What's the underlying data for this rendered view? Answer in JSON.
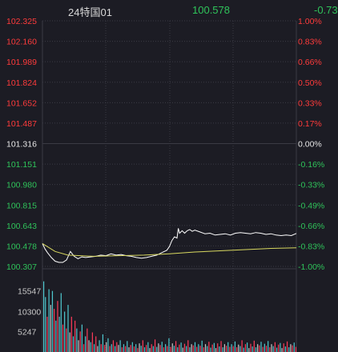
{
  "header": {
    "name": "24特国01",
    "price": "100.578",
    "change": "-0.73"
  },
  "colors": {
    "up": "#ff3b3b",
    "down": "#2fc35a",
    "neutral": "#e6e6e6",
    "grid": "#3a3a44",
    "price_line": "#ffffff",
    "avg_line": "#d8d860",
    "vol_up": "#ff3b5a",
    "vol_down": "#4fc9d0",
    "vol_flat": "#c9c9c9"
  },
  "price_axis": {
    "left_labels": [
      "102.325",
      "102.160",
      "101.989",
      "101.824",
      "101.652",
      "101.487",
      "101.316",
      "101.151",
      "100.980",
      "100.815",
      "100.643",
      "100.478",
      "100.307"
    ],
    "right_labels": [
      "1.00%",
      "0.83%",
      "0.66%",
      "0.50%",
      "0.33%",
      "0.17%",
      "0.00%",
      "-0.16%",
      "-0.33%",
      "-0.49%",
      "-0.66%",
      "-0.83%",
      "-1.00%"
    ],
    "label_tones": [
      "up",
      "up",
      "up",
      "up",
      "up",
      "up",
      "neutral",
      "down",
      "down",
      "down",
      "down",
      "down",
      "down"
    ]
  },
  "volume_axis": {
    "labels": [
      "15547",
      "10300",
      "5247"
    ]
  },
  "chart_data": {
    "type": "line",
    "ylim": [
      100.307,
      102.325
    ],
    "series": [
      {
        "points": [
          [
            0,
            100.495
          ],
          [
            0.01,
            100.45
          ],
          [
            0.02,
            100.42
          ],
          [
            0.035,
            100.38
          ],
          [
            0.05,
            100.35
          ],
          [
            0.065,
            100.34
          ],
          [
            0.08,
            100.34
          ],
          [
            0.095,
            100.36
          ],
          [
            0.11,
            100.43
          ],
          [
            0.125,
            100.39
          ],
          [
            0.14,
            100.37
          ],
          [
            0.155,
            100.385
          ],
          [
            0.17,
            100.38
          ],
          [
            0.19,
            100.385
          ],
          [
            0.21,
            100.39
          ],
          [
            0.23,
            100.4
          ],
          [
            0.25,
            100.395
          ],
          [
            0.27,
            100.41
          ],
          [
            0.29,
            100.4
          ],
          [
            0.31,
            100.405
          ],
          [
            0.33,
            100.395
          ],
          [
            0.35,
            100.39
          ],
          [
            0.37,
            100.38
          ],
          [
            0.39,
            100.375
          ],
          [
            0.41,
            100.38
          ],
          [
            0.43,
            100.39
          ],
          [
            0.45,
            100.4
          ],
          [
            0.47,
            100.42
          ],
          [
            0.49,
            100.44
          ],
          [
            0.5,
            100.47
          ],
          [
            0.51,
            100.52
          ],
          [
            0.52,
            100.55
          ],
          [
            0.53,
            100.54
          ],
          [
            0.535,
            100.62
          ],
          [
            0.54,
            100.58
          ],
          [
            0.55,
            100.6
          ],
          [
            0.56,
            100.58
          ],
          [
            0.57,
            100.6
          ],
          [
            0.58,
            100.61
          ],
          [
            0.59,
            100.595
          ],
          [
            0.6,
            100.605
          ],
          [
            0.62,
            100.59
          ],
          [
            0.64,
            100.575
          ],
          [
            0.66,
            100.58
          ],
          [
            0.68,
            100.565
          ],
          [
            0.7,
            100.57
          ],
          [
            0.72,
            100.575
          ],
          [
            0.74,
            100.565
          ],
          [
            0.76,
            100.58
          ],
          [
            0.78,
            100.585
          ],
          [
            0.8,
            100.58
          ],
          [
            0.82,
            100.575
          ],
          [
            0.84,
            100.585
          ],
          [
            0.86,
            100.58
          ],
          [
            0.88,
            100.57
          ],
          [
            0.9,
            100.575
          ],
          [
            0.92,
            100.565
          ],
          [
            0.94,
            100.56
          ],
          [
            0.96,
            100.565
          ],
          [
            0.98,
            100.56
          ],
          [
            1.0,
            100.578
          ]
        ]
      },
      {
        "points": [
          [
            0,
            100.495
          ],
          [
            0.05,
            100.43
          ],
          [
            0.1,
            100.4
          ],
          [
            0.2,
            100.39
          ],
          [
            0.3,
            100.395
          ],
          [
            0.4,
            100.4
          ],
          [
            0.5,
            100.41
          ],
          [
            0.6,
            100.425
          ],
          [
            0.7,
            100.435
          ],
          [
            0.8,
            100.445
          ],
          [
            0.9,
            100.455
          ],
          [
            1.0,
            100.46
          ]
        ]
      }
    ],
    "volume": {
      "ylim": [
        0,
        20794
      ],
      "bars": [
        [
          18000,
          "down"
        ],
        [
          14000,
          "down"
        ],
        [
          9000,
          "up"
        ],
        [
          16000,
          "down"
        ],
        [
          12000,
          "flat"
        ],
        [
          15547,
          "down"
        ],
        [
          11000,
          "up"
        ],
        [
          8000,
          "down"
        ],
        [
          13000,
          "up"
        ],
        [
          9000,
          "down"
        ],
        [
          15000,
          "down"
        ],
        [
          7000,
          "up"
        ],
        [
          10300,
          "down"
        ],
        [
          6000,
          "up"
        ],
        [
          12000,
          "down"
        ],
        [
          5000,
          "flat"
        ],
        [
          9000,
          "up"
        ],
        [
          4000,
          "down"
        ],
        [
          8000,
          "up"
        ],
        [
          6000,
          "down"
        ],
        [
          3000,
          "flat"
        ],
        [
          5247,
          "up"
        ],
        [
          7000,
          "down"
        ],
        [
          2000,
          "up"
        ],
        [
          4000,
          "down"
        ],
        [
          6000,
          "up"
        ],
        [
          3000,
          "flat"
        ],
        [
          2500,
          "down"
        ],
        [
          5000,
          "up"
        ],
        [
          2000,
          "down"
        ],
        [
          4000,
          "up"
        ],
        [
          1500,
          "flat"
        ],
        [
          3000,
          "down"
        ],
        [
          2000,
          "up"
        ],
        [
          4500,
          "down"
        ],
        [
          1800,
          "up"
        ],
        [
          2500,
          "flat"
        ],
        [
          3500,
          "down"
        ],
        [
          1500,
          "up"
        ],
        [
          2000,
          "down"
        ],
        [
          3000,
          "up"
        ],
        [
          1500,
          "down"
        ],
        [
          2500,
          "up"
        ],
        [
          1800,
          "flat"
        ],
        [
          3000,
          "down"
        ],
        [
          1200,
          "up"
        ],
        [
          2000,
          "down"
        ],
        [
          1500,
          "up"
        ],
        [
          2800,
          "down"
        ],
        [
          1200,
          "flat"
        ],
        [
          1800,
          "up"
        ],
        [
          2500,
          "down"
        ],
        [
          1400,
          "up"
        ],
        [
          2000,
          "down"
        ],
        [
          1000,
          "up"
        ],
        [
          2200,
          "flat"
        ],
        [
          1600,
          "down"
        ],
        [
          3000,
          "up"
        ],
        [
          1200,
          "down"
        ],
        [
          1800,
          "up"
        ],
        [
          2500,
          "down"
        ],
        [
          1000,
          "flat"
        ],
        [
          2000,
          "up"
        ],
        [
          1500,
          "down"
        ],
        [
          3200,
          "up"
        ],
        [
          1300,
          "down"
        ],
        [
          2200,
          "flat"
        ],
        [
          1800,
          "up"
        ],
        [
          2600,
          "down"
        ],
        [
          1200,
          "up"
        ],
        [
          2000,
          "down"
        ],
        [
          1500,
          "up"
        ],
        [
          3500,
          "down"
        ],
        [
          1300,
          "up"
        ],
        [
          2200,
          "flat"
        ],
        [
          1600,
          "down"
        ],
        [
          2800,
          "up"
        ],
        [
          1200,
          "down"
        ],
        [
          1900,
          "up"
        ],
        [
          2400,
          "down"
        ],
        [
          1100,
          "flat"
        ],
        [
          2100,
          "up"
        ],
        [
          1500,
          "down"
        ],
        [
          3000,
          "up"
        ],
        [
          1200,
          "down"
        ],
        [
          2000,
          "flat"
        ],
        [
          1700,
          "up"
        ],
        [
          2500,
          "down"
        ],
        [
          1300,
          "up"
        ],
        [
          2000,
          "down"
        ],
        [
          1600,
          "up"
        ],
        [
          2900,
          "down"
        ],
        [
          1200,
          "up"
        ],
        [
          2000,
          "flat"
        ],
        [
          1500,
          "down"
        ],
        [
          2600,
          "up"
        ],
        [
          1100,
          "down"
        ],
        [
          1900,
          "up"
        ],
        [
          2300,
          "down"
        ],
        [
          1000,
          "flat"
        ],
        [
          2200,
          "up"
        ],
        [
          1400,
          "down"
        ],
        [
          2800,
          "up"
        ],
        [
          1200,
          "down"
        ],
        [
          2000,
          "flat"
        ],
        [
          1600,
          "up"
        ],
        [
          2500,
          "down"
        ],
        [
          1300,
          "up"
        ],
        [
          2000,
          "down"
        ],
        [
          1500,
          "up"
        ],
        [
          2700,
          "down"
        ],
        [
          1200,
          "up"
        ],
        [
          1900,
          "flat"
        ],
        [
          1500,
          "down"
        ],
        [
          3000,
          "up"
        ],
        [
          1100,
          "down"
        ],
        [
          2000,
          "up"
        ],
        [
          2400,
          "down"
        ],
        [
          1000,
          "flat"
        ],
        [
          2100,
          "up"
        ],
        [
          1400,
          "down"
        ],
        [
          2900,
          "up"
        ],
        [
          1200,
          "down"
        ],
        [
          2000,
          "flat"
        ],
        [
          1700,
          "up"
        ],
        [
          2600,
          "down"
        ],
        [
          1300,
          "up"
        ],
        [
          2100,
          "down"
        ],
        [
          1600,
          "up"
        ],
        [
          2800,
          "down"
        ],
        [
          1200,
          "up"
        ],
        [
          2000,
          "flat"
        ],
        [
          1500,
          "down"
        ],
        [
          2500,
          "up"
        ],
        [
          1100,
          "down"
        ],
        [
          1900,
          "up"
        ],
        [
          2300,
          "down"
        ],
        [
          1000,
          "flat"
        ],
        [
          2200,
          "up"
        ],
        [
          1400,
          "down"
        ],
        [
          2700,
          "up"
        ],
        [
          1200,
          "down"
        ],
        [
          2000,
          "flat"
        ],
        [
          1700,
          "up"
        ],
        [
          2400,
          "down"
        ],
        [
          1300,
          "up"
        ]
      ]
    }
  }
}
